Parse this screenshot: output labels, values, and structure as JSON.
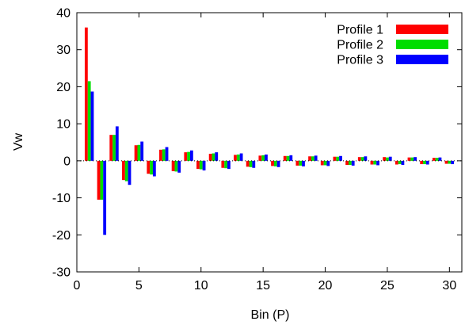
{
  "chart_data": {
    "type": "bar",
    "title": "",
    "xlabel": "Bin (P)",
    "ylabel": "Vw",
    "xlim": [
      0,
      31
    ],
    "ylim": [
      -30,
      40
    ],
    "xticks": [
      0,
      5,
      10,
      15,
      20,
      25,
      30
    ],
    "yticks": [
      -30,
      -20,
      -10,
      0,
      10,
      20,
      30,
      40
    ],
    "grid": false,
    "legend_position": "top-right",
    "x": [
      1,
      2,
      3,
      4,
      5,
      6,
      7,
      8,
      9,
      10,
      11,
      12,
      13,
      14,
      15,
      16,
      17,
      18,
      19,
      20,
      21,
      22,
      23,
      24,
      25,
      26,
      27,
      28,
      29,
      30
    ],
    "series": [
      {
        "name": "Profile 1",
        "color": "#ff0000",
        "values": [
          36,
          -10.5,
          7,
          -5.2,
          4.2,
          -3.5,
          3,
          -2.8,
          2.3,
          -2.2,
          1.9,
          -1.9,
          1.6,
          -1.6,
          1.4,
          -1.4,
          1.3,
          -1.3,
          1.2,
          -1.2,
          1.1,
          -1.1,
          1,
          -1,
          1,
          -1,
          0.9,
          -0.9,
          0.8,
          -0.8
        ]
      },
      {
        "name": "Profile 2",
        "color": "#00dd00",
        "values": [
          21.5,
          -10.5,
          7,
          -5.5,
          4.3,
          -3.7,
          3.1,
          -2.9,
          2.4,
          -2.3,
          2,
          -2,
          1.7,
          -1.7,
          1.5,
          -1.5,
          1.3,
          -1.3,
          1.2,
          -1.2,
          1.1,
          -1.1,
          1,
          -1,
          0.9,
          -0.9,
          0.9,
          -0.9,
          0.8,
          -0.8
        ]
      },
      {
        "name": "Profile 3",
        "color": "#0000ff",
        "values": [
          18.7,
          -20,
          9.3,
          -6.5,
          5.2,
          -4.2,
          3.7,
          -3.2,
          2.8,
          -2.6,
          2.3,
          -2.2,
          2,
          -1.9,
          1.7,
          -1.7,
          1.5,
          -1.5,
          1.4,
          -1.4,
          1.3,
          -1.3,
          1.2,
          -1.2,
          1.1,
          -1.1,
          1,
          -1,
          0.9,
          -0.9
        ]
      }
    ]
  }
}
